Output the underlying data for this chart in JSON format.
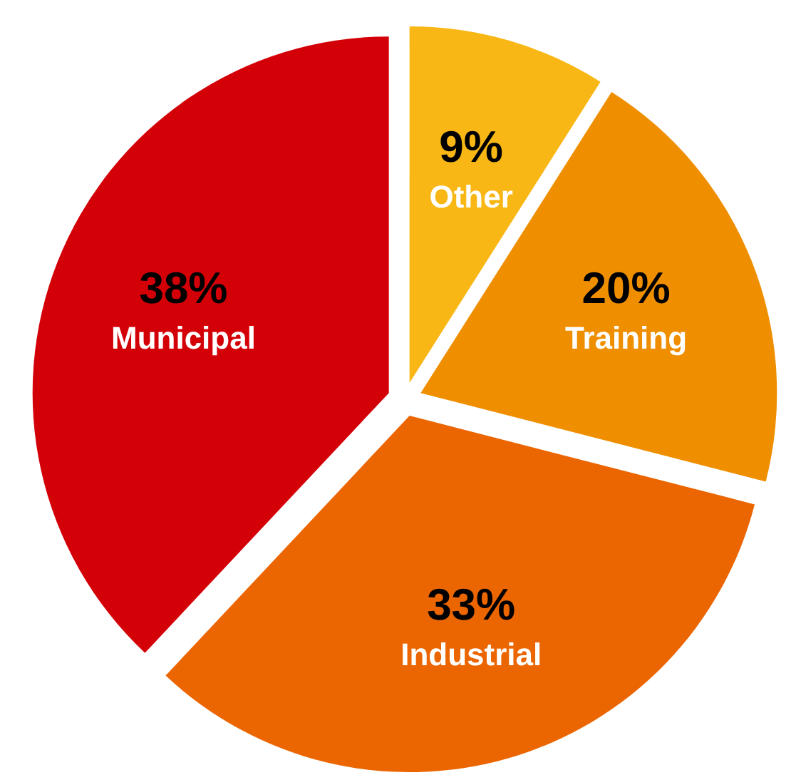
{
  "chart_data": {
    "type": "pie",
    "categories": [
      "Other",
      "Training",
      "Industrial",
      "Municipal"
    ],
    "values": [
      9,
      20,
      33,
      38
    ],
    "colors": [
      "#f8b714",
      "#ef8f00",
      "#eb6500",
      "#d40008"
    ],
    "value_labels": [
      "9%",
      "20%",
      "33%",
      "38%"
    ]
  }
}
